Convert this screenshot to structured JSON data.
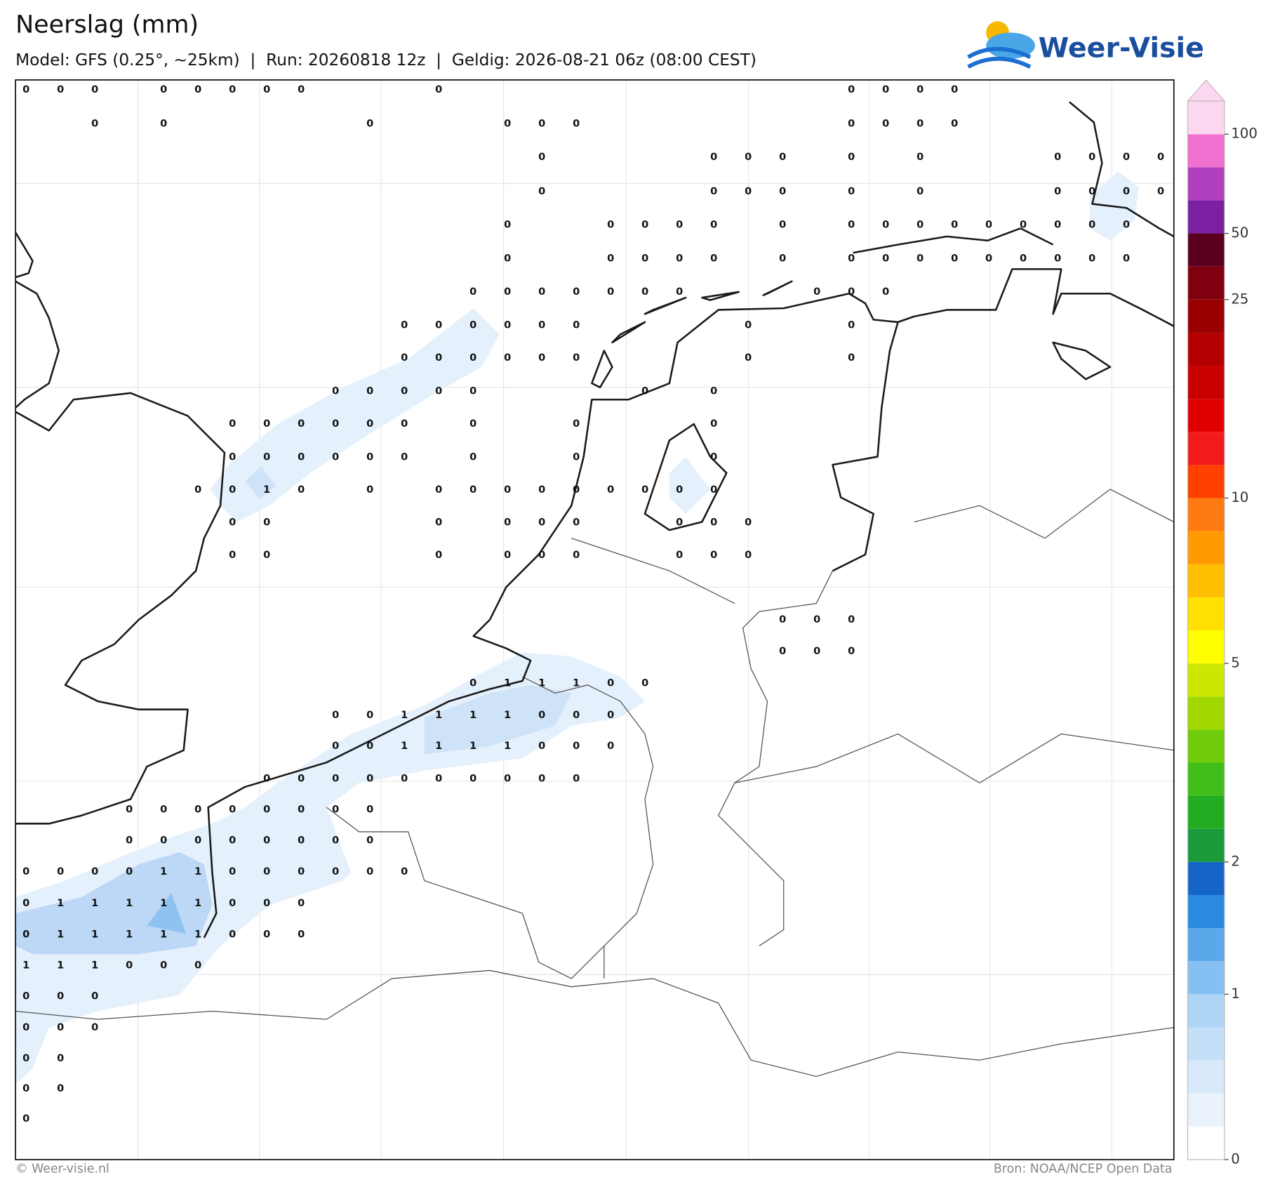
{
  "header": {
    "title": "Neerslag (mm)",
    "subtitle": "Model: GFS (0.25°, ~25km)  |  Run: 20260818 12z  |  Geldig: 2026-08-21 06z (08:00 CEST)",
    "logo": "Weer-Visie"
  },
  "footer": {
    "left": "© Weer-visie.nl",
    "right": "Bron: NOAA/NCEP Open Data"
  },
  "colorbar": {
    "levels": [
      0,
      0.1,
      0.2,
      0.3,
      0.5,
      1,
      1.25,
      1.5,
      1.75,
      2,
      2.5,
      3,
      3.5,
      4,
      4.5,
      5,
      6,
      7,
      8,
      9,
      10,
      12,
      14,
      16,
      18,
      20,
      25,
      35,
      50,
      60,
      75,
      100,
      150
    ],
    "colors": [
      "#ffffff",
      "#eaf3fc",
      "#d8eafa",
      "#c4e0f8",
      "#aed4f6",
      "#86c0f2",
      "#5aa8ea",
      "#2a8ae0",
      "#1565c8",
      "#1a9a3a",
      "#22ac22",
      "#40be1a",
      "#70cc0a",
      "#a0d800",
      "#cce800",
      "#ffff00",
      "#ffe000",
      "#ffbe00",
      "#ff9a00",
      "#ff7a10",
      "#ff4000",
      "#f21a1a",
      "#e00000",
      "#c80000",
      "#b40000",
      "#9a0000",
      "#800010",
      "#5c0020",
      "#7a20a0",
      "#b040c0",
      "#f070d0",
      "#fcd8f0"
    ],
    "ticks": [
      0,
      1,
      2,
      5,
      10,
      25,
      50,
      100
    ]
  },
  "grid": {
    "rows": [
      [
        0,
        0,
        0,
        null,
        0,
        0,
        0,
        0,
        0,
        null,
        null,
        null,
        0,
        null,
        null,
        null,
        null,
        null,
        null,
        null,
        null,
        null,
        null,
        null,
        0,
        0,
        0,
        0,
        null,
        null,
        null,
        null,
        null,
        null
      ],
      [
        null,
        null,
        0,
        null,
        0,
        null,
        null,
        null,
        null,
        null,
        0,
        null,
        null,
        null,
        0,
        0,
        0,
        null,
        null,
        null,
        null,
        null,
        null,
        null,
        0,
        0,
        0,
        0,
        null,
        null,
        null,
        null,
        null,
        null
      ],
      [
        null,
        null,
        null,
        null,
        null,
        null,
        null,
        null,
        null,
        null,
        null,
        null,
        null,
        null,
        null,
        0,
        null,
        null,
        null,
        null,
        0,
        0,
        0,
        null,
        0,
        null,
        0,
        null,
        null,
        null,
        0,
        0,
        0,
        0
      ],
      [
        null,
        null,
        null,
        null,
        null,
        null,
        null,
        null,
        null,
        null,
        null,
        null,
        null,
        null,
        null,
        0,
        null,
        null,
        null,
        null,
        0,
        0,
        0,
        null,
        0,
        null,
        0,
        null,
        null,
        null,
        0,
        0,
        0,
        0
      ],
      [
        null,
        null,
        null,
        null,
        null,
        null,
        null,
        null,
        null,
        null,
        null,
        null,
        null,
        null,
        0,
        null,
        null,
        0,
        0,
        0,
        0,
        null,
        0,
        null,
        0,
        0,
        0,
        0,
        0,
        0,
        0,
        0,
        0,
        null
      ],
      [
        null,
        null,
        null,
        null,
        null,
        null,
        null,
        null,
        null,
        null,
        null,
        null,
        null,
        null,
        0,
        null,
        null,
        0,
        0,
        0,
        0,
        null,
        0,
        null,
        0,
        0,
        0,
        0,
        0,
        0,
        0,
        0,
        0,
        null
      ],
      [
        null,
        null,
        null,
        null,
        null,
        null,
        null,
        null,
        null,
        null,
        null,
        null,
        null,
        0,
        0,
        0,
        0,
        0,
        0,
        0,
        null,
        null,
        null,
        0,
        0,
        0,
        null,
        null,
        null,
        null,
        null,
        null,
        null,
        null
      ],
      [
        null,
        null,
        null,
        null,
        null,
        null,
        null,
        null,
        null,
        null,
        null,
        0,
        0,
        0,
        0,
        0,
        0,
        null,
        null,
        null,
        null,
        0,
        null,
        null,
        0,
        null,
        null,
        null,
        null,
        null,
        null,
        null,
        null,
        null
      ],
      [
        null,
        null,
        null,
        null,
        null,
        null,
        null,
        null,
        null,
        null,
        null,
        0,
        0,
        0,
        0,
        0,
        0,
        null,
        null,
        null,
        null,
        0,
        null,
        null,
        0,
        null,
        null,
        null,
        null,
        null,
        null,
        null,
        null,
        null
      ],
      [
        null,
        null,
        null,
        null,
        null,
        null,
        null,
        null,
        null,
        0,
        0,
        0,
        0,
        0,
        null,
        null,
        null,
        null,
        0,
        null,
        0,
        null,
        null,
        null,
        null,
        null,
        null,
        null,
        null,
        null,
        null,
        null,
        null,
        null
      ],
      [
        null,
        null,
        null,
        null,
        null,
        null,
        0,
        0,
        0,
        0,
        0,
        0,
        null,
        0,
        null,
        null,
        0,
        null,
        null,
        null,
        0,
        null,
        null,
        null,
        null,
        null,
        null,
        null,
        null,
        null,
        null,
        null,
        null,
        null
      ],
      [
        null,
        null,
        null,
        null,
        null,
        null,
        0,
        0,
        0,
        0,
        0,
        0,
        null,
        0,
        null,
        null,
        0,
        null,
        null,
        null,
        0,
        null,
        null,
        null,
        null,
        null,
        null,
        null,
        null,
        null,
        null,
        null,
        null,
        null
      ],
      [
        null,
        null,
        null,
        null,
        null,
        0,
        0,
        1,
        0,
        null,
        0,
        null,
        0,
        0,
        0,
        0,
        0,
        0,
        0,
        0,
        0,
        null,
        null,
        null,
        null,
        null,
        null,
        null,
        null,
        null,
        null,
        null,
        null,
        null
      ],
      [
        null,
        null,
        null,
        null,
        null,
        null,
        0,
        0,
        null,
        null,
        null,
        null,
        0,
        null,
        0,
        0,
        0,
        null,
        null,
        0,
        0,
        0,
        null,
        null,
        null,
        null,
        null,
        null,
        null,
        null,
        null,
        null,
        null,
        null
      ],
      [
        null,
        null,
        null,
        null,
        null,
        null,
        0,
        0,
        null,
        null,
        null,
        null,
        0,
        null,
        0,
        0,
        0,
        null,
        null,
        0,
        0,
        0,
        null,
        null,
        null,
        null,
        null,
        null,
        null,
        null,
        null,
        null,
        null,
        null
      ],
      [
        null,
        null,
        null,
        null,
        null,
        null,
        null,
        null,
        null,
        null,
        null,
        null,
        null,
        null,
        null,
        null,
        null,
        null,
        null,
        null,
        null,
        null,
        null,
        null,
        null,
        null,
        null,
        null,
        null,
        null,
        null,
        null,
        null,
        null
      ],
      [
        null,
        null,
        null,
        null,
        null,
        null,
        null,
        null,
        null,
        null,
        null,
        null,
        null,
        null,
        null,
        null,
        null,
        null,
        null,
        null,
        null,
        null,
        0,
        0,
        0,
        null,
        null,
        null,
        null,
        null,
        null,
        null,
        null,
        null
      ],
      [
        null,
        null,
        null,
        null,
        null,
        null,
        null,
        null,
        null,
        null,
        null,
        null,
        null,
        null,
        null,
        null,
        null,
        null,
        null,
        null,
        null,
        null,
        0,
        0,
        0,
        null,
        null,
        null,
        null,
        null,
        null,
        null,
        null,
        null
      ],
      [
        null,
        null,
        null,
        null,
        null,
        null,
        null,
        null,
        null,
        null,
        null,
        null,
        null,
        0,
        1,
        1,
        1,
        0,
        0,
        null,
        null,
        null,
        null,
        null,
        null,
        null,
        null,
        null,
        null,
        null,
        null,
        null,
        null,
        null
      ],
      [
        null,
        null,
        null,
        null,
        null,
        null,
        null,
        null,
        null,
        0,
        0,
        1,
        1,
        1,
        1,
        0,
        0,
        0,
        null,
        null,
        null,
        null,
        null,
        null,
        null,
        null,
        null,
        null,
        null,
        null,
        null,
        null,
        null,
        null
      ],
      [
        null,
        null,
        null,
        null,
        null,
        null,
        null,
        null,
        null,
        0,
        0,
        1,
        1,
        1,
        1,
        0,
        0,
        0,
        null,
        null,
        null,
        null,
        null,
        null,
        null,
        null,
        null,
        null,
        null,
        null,
        null,
        null,
        null,
        null
      ],
      [
        null,
        null,
        null,
        null,
        null,
        null,
        null,
        0,
        0,
        0,
        0,
        0,
        0,
        0,
        0,
        0,
        0,
        null,
        null,
        null,
        null,
        null,
        null,
        null,
        null,
        null,
        null,
        null,
        null,
        null,
        null,
        null,
        null,
        null
      ],
      [
        null,
        null,
        null,
        0,
        0,
        0,
        0,
        0,
        0,
        0,
        0,
        null,
        null,
        null,
        null,
        null,
        null,
        null,
        null,
        null,
        null,
        null,
        null,
        null,
        null,
        null,
        null,
        null,
        null,
        null,
        null,
        null,
        null,
        null
      ],
      [
        null,
        null,
        null,
        0,
        0,
        0,
        0,
        0,
        0,
        0,
        0,
        null,
        null,
        null,
        null,
        null,
        null,
        null,
        null,
        null,
        null,
        null,
        null,
        null,
        null,
        null,
        null,
        null,
        null,
        null,
        null,
        null,
        null,
        null
      ],
      [
        0,
        0,
        0,
        0,
        1,
        1,
        0,
        0,
        0,
        0,
        0,
        0,
        null,
        null,
        null,
        null,
        null,
        null,
        null,
        null,
        null,
        null,
        null,
        null,
        null,
        null,
        null,
        null,
        null,
        null,
        null,
        null,
        null,
        null
      ],
      [
        0,
        1,
        1,
        1,
        1,
        1,
        0,
        0,
        0,
        null,
        null,
        null,
        null,
        null,
        null,
        null,
        null,
        null,
        null,
        null,
        null,
        null,
        null,
        null,
        null,
        null,
        null,
        null,
        null,
        null,
        null,
        null,
        null,
        null
      ],
      [
        0,
        1,
        1,
        1,
        1,
        1,
        0,
        0,
        0,
        null,
        null,
        null,
        null,
        null,
        null,
        null,
        null,
        null,
        null,
        null,
        null,
        null,
        null,
        null,
        null,
        null,
        null,
        null,
        null,
        null,
        null,
        null,
        null,
        null
      ],
      [
        1,
        1,
        1,
        0,
        0,
        0,
        null,
        null,
        null,
        null,
        null,
        null,
        null,
        null,
        null,
        null,
        null,
        null,
        null,
        null,
        null,
        null,
        null,
        null,
        null,
        null,
        null,
        null,
        null,
        null,
        null,
        null,
        null,
        null
      ],
      [
        0,
        0,
        0,
        null,
        null,
        null,
        null,
        null,
        null,
        null,
        null,
        null,
        null,
        null,
        null,
        null,
        null,
        null,
        null,
        null,
        null,
        null,
        null,
        null,
        null,
        null,
        null,
        null,
        null,
        null,
        null,
        null,
        null,
        null
      ],
      [
        0,
        0,
        0,
        null,
        null,
        null,
        null,
        null,
        null,
        null,
        null,
        null,
        null,
        null,
        null,
        null,
        null,
        null,
        null,
        null,
        null,
        null,
        null,
        null,
        null,
        null,
        null,
        null,
        null,
        null,
        null,
        null,
        null,
        null
      ],
      [
        0,
        0,
        null,
        null,
        null,
        null,
        null,
        null,
        null,
        null,
        null,
        null,
        null,
        null,
        null,
        null,
        null,
        null,
        null,
        null,
        null,
        null,
        null,
        null,
        null,
        null,
        null,
        null,
        null,
        null,
        null,
        null,
        null,
        null
      ],
      [
        0,
        0,
        null,
        null,
        null,
        null,
        null,
        null,
        null,
        null,
        null,
        null,
        null,
        null,
        null,
        null,
        null,
        null,
        null,
        null,
        null,
        null,
        null,
        null,
        null,
        null,
        null,
        null,
        null,
        null,
        null,
        null,
        null,
        null
      ],
      [
        0,
        null,
        null,
        null,
        null,
        null,
        null,
        null,
        null,
        null,
        null,
        null,
        null,
        null,
        null,
        null,
        null,
        null,
        null,
        null,
        null,
        null,
        null,
        null,
        null,
        null,
        null,
        null,
        null,
        null,
        null,
        null,
        null,
        null
      ]
    ]
  }
}
